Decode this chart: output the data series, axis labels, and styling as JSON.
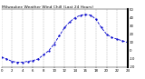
{
  "title": "Milwaukee Weather Wind Chill (Last 24 Hours)",
  "x": [
    0,
    1,
    2,
    3,
    4,
    5,
    6,
    7,
    8,
    9,
    10,
    11,
    12,
    13,
    14,
    15,
    16,
    17,
    18,
    19,
    20,
    21,
    22,
    23,
    24
  ],
  "y": [
    -8,
    -10,
    -13,
    -14,
    -14,
    -13,
    -12,
    -10,
    -5,
    0,
    8,
    18,
    28,
    35,
    40,
    43,
    44,
    43,
    38,
    28,
    20,
    16,
    14,
    12,
    10
  ],
  "line_color": "#0000cc",
  "bg_color": "#ffffff",
  "grid_color": "#aaaaaa",
  "ylim": [
    -20,
    50
  ],
  "xlim": [
    0,
    24
  ],
  "title_fontsize": 3.2,
  "tick_fontsize": 2.8,
  "line_width": 0.6,
  "marker_size": 1.2,
  "marker": ".",
  "linestyle": "--",
  "yticks": [
    -20,
    -10,
    0,
    10,
    20,
    30,
    40,
    50
  ],
  "xticks": [
    0,
    2,
    4,
    6,
    8,
    10,
    12,
    14,
    16,
    18,
    20,
    22,
    24
  ]
}
